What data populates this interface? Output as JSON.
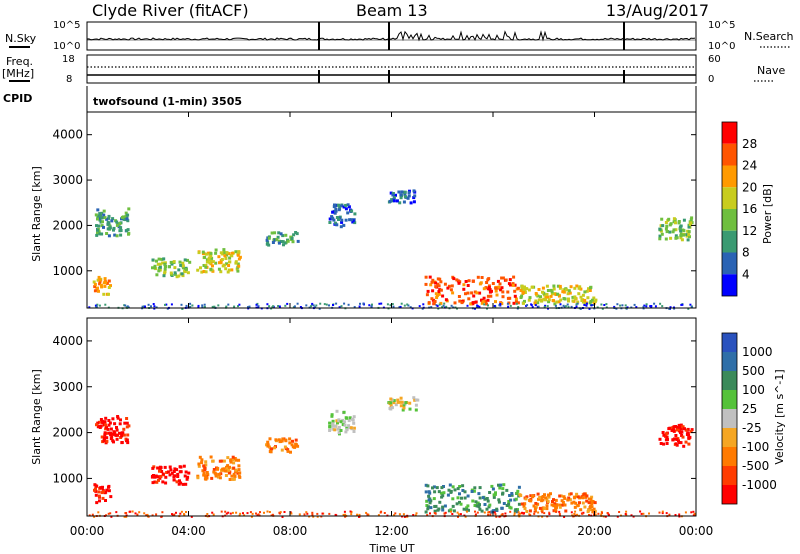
{
  "header": {
    "station": "Clyde River (fitACF)",
    "beam": "Beam 13",
    "date": "13/Aug/2017"
  },
  "noise_panel": {
    "left_label": "N.Sky",
    "right_label": "N.Search",
    "left_ticks": [
      "10^5",
      "10^0"
    ],
    "right_ticks": [
      "10^5",
      "10^0"
    ]
  },
  "freq_panel": {
    "left_label_1": "Freq.",
    "left_label_2": "[MHz]",
    "right_label": "Nave",
    "left_ticks": [
      "18",
      "8"
    ],
    "right_ticks": [
      "60",
      "0"
    ]
  },
  "cpid": {
    "label": "CPID",
    "mode": "twofsound (1-min) 3505"
  },
  "time_axis": {
    "label": "Time UT",
    "ticks": [
      "00:00",
      "04:00",
      "08:00",
      "12:00",
      "16:00",
      "20:00",
      "00:00"
    ]
  },
  "chart_data": [
    {
      "type": "heatmap",
      "panel": "power",
      "ylabel": "Slant Range [km]",
      "y_ticks": [
        1000,
        2000,
        3000,
        4000
      ],
      "ylim": [
        180,
        4500
      ],
      "xlim_hours": [
        0,
        24
      ],
      "colorbar": {
        "label": "Power [dB]",
        "ticks": [
          "4",
          "8",
          "12",
          "16",
          "20",
          "24",
          "28"
        ],
        "colors": [
          "#0000ff",
          "#2a63b4",
          "#3a9a72",
          "#6fbf3f",
          "#c8cc1e",
          "#ff9a00",
          "#ff5500",
          "#ff0000"
        ]
      },
      "regions": [
        {
          "t": [
            0.2,
            0.9
          ],
          "r": [
            500,
            900
          ],
          "level": 5
        },
        {
          "t": [
            0.3,
            1.6
          ],
          "r": [
            1800,
            2400
          ],
          "level": 2
        },
        {
          "t": [
            2.5,
            4.0
          ],
          "r": [
            900,
            1300
          ],
          "level": 3
        },
        {
          "t": [
            4.3,
            6.0
          ],
          "r": [
            1000,
            1500
          ],
          "level": 4
        },
        {
          "t": [
            7.0,
            8.3
          ],
          "r": [
            1600,
            1900
          ],
          "level": 2
        },
        {
          "t": [
            9.5,
            10.5
          ],
          "r": [
            2000,
            2500
          ],
          "level": 1
        },
        {
          "t": [
            11.8,
            13.0
          ],
          "r": [
            2500,
            2800
          ],
          "level": 1
        },
        {
          "t": [
            13.3,
            17.0
          ],
          "r": [
            300,
            900
          ],
          "level": 6
        },
        {
          "t": [
            17.0,
            20.0
          ],
          "r": [
            300,
            700
          ],
          "level": 4
        },
        {
          "t": [
            22.5,
            23.8
          ],
          "r": [
            1700,
            2200
          ],
          "level": 3
        }
      ]
    },
    {
      "type": "heatmap",
      "panel": "velocity",
      "ylabel": "Slant Range [km]",
      "y_ticks": [
        1000,
        2000,
        3000,
        4000
      ],
      "ylim": [
        180,
        4500
      ],
      "xlim_hours": [
        0,
        24
      ],
      "colorbar": {
        "label": "Velocity [m s^-1]",
        "ticks": [
          "1000",
          "500",
          "100",
          "25",
          "-25",
          "-100",
          "-500",
          "-1000"
        ],
        "colors": [
          "#2a52be",
          "#2f6fa8",
          "#3b8a5a",
          "#55c23a",
          "#c0c0c0",
          "#f5a623",
          "#ff7a00",
          "#ff3c00",
          "#ff0000"
        ]
      },
      "regions": [
        {
          "t": [
            0.2,
            0.9
          ],
          "r": [
            500,
            900
          ],
          "level": 0
        },
        {
          "t": [
            0.3,
            1.6
          ],
          "r": [
            1800,
            2400
          ],
          "level": 0
        },
        {
          "t": [
            2.5,
            4.0
          ],
          "r": [
            900,
            1300
          ],
          "level": 0
        },
        {
          "t": [
            4.3,
            6.0
          ],
          "r": [
            1000,
            1500
          ],
          "level": 2
        },
        {
          "t": [
            7.0,
            8.3
          ],
          "r": [
            1600,
            1900
          ],
          "level": 2
        },
        {
          "t": [
            9.5,
            10.5
          ],
          "r": [
            2000,
            2500
          ],
          "level": 4
        },
        {
          "t": [
            11.8,
            13.0
          ],
          "r": [
            2500,
            2800
          ],
          "level": 4
        },
        {
          "t": [
            13.3,
            17.0
          ],
          "r": [
            300,
            900
          ],
          "level": 6
        },
        {
          "t": [
            17.0,
            20.0
          ],
          "r": [
            300,
            700
          ],
          "level": 2
        },
        {
          "t": [
            22.5,
            23.8
          ],
          "r": [
            1700,
            2200
          ],
          "level": 0
        }
      ]
    }
  ]
}
